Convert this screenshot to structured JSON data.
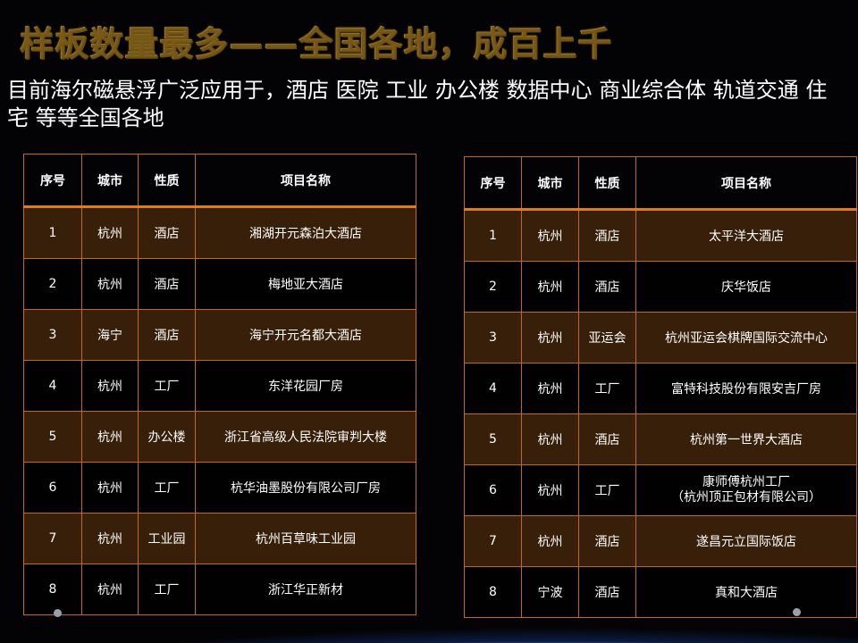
{
  "title": "样板数量最多——全国各地，成百上千",
  "subtitle": "目前海尔磁悬浮广泛应用于，酒店 医院 工业 办公楼 数据中心 商业综合体 轨道交通 住宅 等等全国各地",
  "headers": [
    "序号",
    "城市",
    "性质",
    "项目名称"
  ],
  "left_table": [
    {
      "no": "1",
      "city": "杭州",
      "type": "酒店",
      "name": "湘湖开元森泊大酒店"
    },
    {
      "no": "2",
      "city": "杭州",
      "type": "酒店",
      "name": "梅地亚大酒店"
    },
    {
      "no": "3",
      "city": "海宁",
      "type": "酒店",
      "name": "海宁开元名都大酒店"
    },
    {
      "no": "4",
      "city": "杭州",
      "type": "工厂",
      "name": "东洋花园厂房"
    },
    {
      "no": "5",
      "city": "杭州",
      "type": "办公楼",
      "name": "浙江省高级人民法院审判大楼"
    },
    {
      "no": "6",
      "city": "杭州",
      "type": "工厂",
      "name": "杭华油墨股份有限公司厂房"
    },
    {
      "no": "7",
      "city": "杭州",
      "type": "工业园",
      "name": "杭州百草味工业园"
    },
    {
      "no": "8",
      "city": "杭州",
      "type": "工厂",
      "name": "浙江华正新材"
    }
  ],
  "right_table": [
    {
      "no": "1",
      "city": "杭州",
      "type": "酒店",
      "name": "太平洋大酒店"
    },
    {
      "no": "2",
      "city": "杭州",
      "type": "酒店",
      "name": "庆华饭店"
    },
    {
      "no": "3",
      "city": "杭州",
      "type": "亚运会",
      "name": "杭州亚运会棋牌国际交流中心"
    },
    {
      "no": "4",
      "city": "杭州",
      "type": "工厂",
      "name": "富特科技股份有限安吉厂房"
    },
    {
      "no": "5",
      "city": "杭州",
      "type": "酒店",
      "name": "杭州第一世界大酒店"
    },
    {
      "no": "6",
      "city": "杭州",
      "type": "工厂",
      "name": "康师傅杭州工厂",
      "name_line2": "（杭州顶正包材有限公司）"
    },
    {
      "no": "7",
      "city": "杭州",
      "type": "酒店",
      "name": "遂昌元立国际饭店"
    },
    {
      "no": "8",
      "city": "宁波",
      "type": "酒店",
      "name": "真和大酒店"
    }
  ],
  "colors": {
    "title_gold": "#d9b45a",
    "border_orange": "#c06a1c",
    "row_brown": "#46280a"
  }
}
